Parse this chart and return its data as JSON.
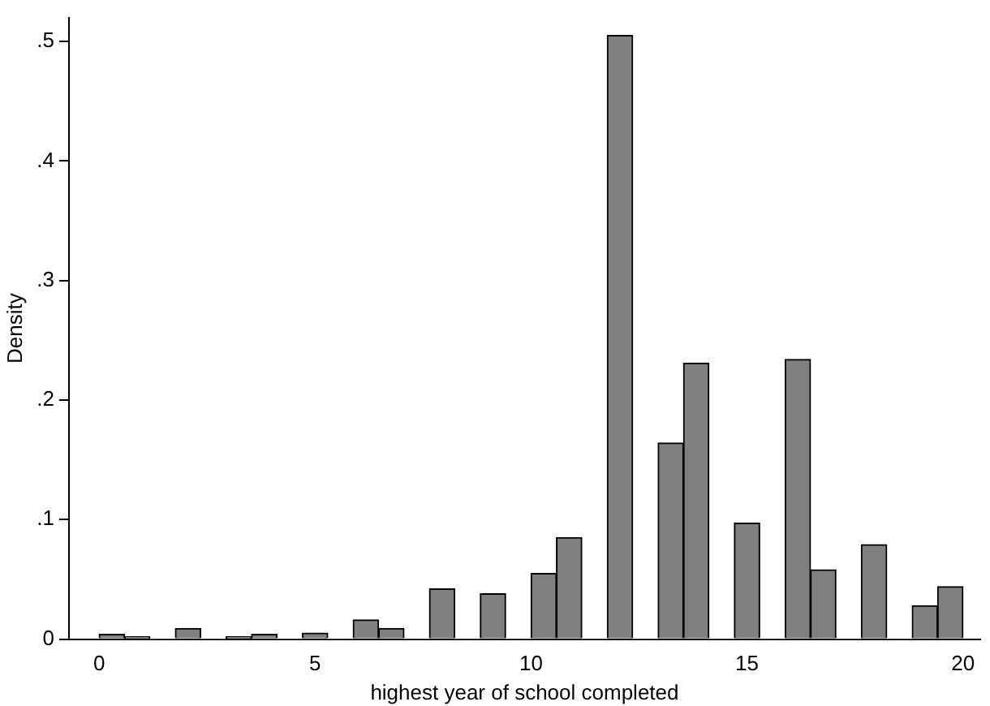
{
  "chart_data": {
    "type": "histogram",
    "xlabel": "highest year of school completed",
    "ylabel": "Density",
    "bins": [
      0,
      0.588,
      1.176,
      1.765,
      2.353,
      2.941,
      3.529,
      4.118,
      4.706,
      5.294,
      5.882,
      6.471,
      7.059,
      7.647,
      8.235,
      8.824,
      9.412,
      10,
      10.588,
      11.176,
      11.765,
      12.353,
      12.941,
      13.529,
      14.118,
      14.706,
      15.294,
      15.882,
      16.471,
      17.059,
      17.647,
      18.235,
      18.824,
      19.412,
      20
    ],
    "values": [
      0.004,
      0.002,
      0,
      0.009,
      0,
      0.002,
      0.004,
      0,
      0.005,
      0,
      0.016,
      0.009,
      0,
      0.042,
      0,
      0.038,
      0,
      0.055,
      0.085,
      0,
      0.505,
      0,
      0.164,
      0.231,
      0,
      0.097,
      0,
      0.234,
      0.058,
      0,
      0.079,
      0,
      0.028,
      0.044
    ],
    "color": "#808080",
    "xlim": [
      -0.7,
      20.4
    ],
    "xticks": [
      0,
      5,
      10,
      15,
      20
    ],
    "ylim": [
      0,
      0.52
    ],
    "yticks": [
      0,
      {
        "value": 0.1,
        "label": ".1"
      },
      {
        "value": 0.2,
        "label": ".2"
      },
      {
        "value": 0.3,
        "label": ".3"
      },
      {
        "value": 0.4,
        "label": ".4"
      },
      {
        "value": 0.5,
        "label": ".5"
      }
    ],
    "grid": false
  }
}
